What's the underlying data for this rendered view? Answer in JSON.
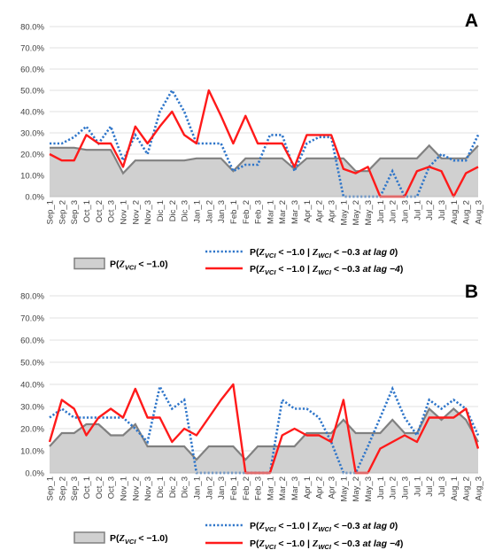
{
  "colors": {
    "area_fill": "#d0d0d0",
    "area_line": "#808080",
    "lag0": "#2e75c9",
    "lag4": "#ff1a1a"
  },
  "chart_data": [
    {
      "panel_label": "A",
      "type": "line",
      "x": [
        "Sep_1",
        "Sep_2",
        "Sep_3",
        "Oct_1",
        "Oct_2",
        "Oct_3",
        "Nov_1",
        "Nov_2",
        "Nov_3",
        "Dic_1",
        "Dic_2",
        "Dic_3",
        "Jan_1",
        "Jan_2",
        "Jan_3",
        "Feb_1",
        "Feb_2",
        "Feb_3",
        "Mar_1",
        "Mar_2",
        "Mar_3",
        "Apr_1",
        "Apr_2",
        "Apr_3",
        "May_1",
        "May_2",
        "May_3",
        "Jun_1",
        "Jun_2",
        "Jun_3",
        "Jul_1",
        "Jul_2",
        "Jul_3",
        "Aug_1",
        "Aug_2",
        "Aug_3"
      ],
      "yticks": [
        "0.0%",
        "10.0%",
        "20.0%",
        "30.0%",
        "40.0%",
        "50.0%",
        "60.0%",
        "70.0%",
        "80.0%"
      ],
      "ylim": [
        0,
        80
      ],
      "grid": true,
      "series": [
        {
          "name": "P(Z_VCI < −1.0)",
          "style": "area",
          "values": [
            23,
            23,
            23,
            22,
            22,
            22,
            11,
            17,
            17,
            17,
            17,
            17,
            18,
            18,
            18,
            12,
            18,
            18,
            18,
            18,
            13,
            18,
            18,
            18,
            18,
            12,
            12,
            18,
            18,
            18,
            18,
            24,
            18,
            18,
            18,
            24
          ]
        },
        {
          "name": "P(Z_VCI < −1.0 | Z_WCI < −0.3 at lag 0)",
          "style": "dotted",
          "values": [
            25,
            25,
            28,
            33,
            25,
            33,
            17,
            29,
            20,
            40,
            50,
            40,
            25,
            25,
            25,
            12,
            15,
            15,
            29,
            29,
            12,
            25,
            28,
            28,
            0,
            0,
            0,
            0,
            12,
            0,
            0,
            14,
            20,
            17,
            17,
            29
          ]
        },
        {
          "name": "P(Z_VCI < −1.0 | Z_WCI < −0.3 at lag −4)",
          "style": "solid",
          "values": [
            20,
            17,
            17,
            29,
            25,
            25,
            14,
            33,
            25,
            33,
            40,
            29,
            25,
            50,
            38,
            25,
            38,
            25,
            25,
            25,
            14,
            29,
            29,
            29,
            13,
            11,
            14,
            0,
            0,
            0,
            12,
            14,
            12,
            0,
            11,
            14
          ]
        }
      ]
    },
    {
      "panel_label": "B",
      "type": "line",
      "x": [
        "Sep_1",
        "Sep_2",
        "Sep_3",
        "Oct_1",
        "Oct_2",
        "Oct_3",
        "Nov_1",
        "Nov_2",
        "Nov_3",
        "Dic_1",
        "Dic_2",
        "Dic_3",
        "Jan_1",
        "Jan_2",
        "Jan_3",
        "Feb_1",
        "Feb_2",
        "Feb_3",
        "Mar_1",
        "Mar_2",
        "Mar_3",
        "Apr_1",
        "Apr_2",
        "Apr_3",
        "May_1",
        "May_2",
        "May_3",
        "Jun_1",
        "Jun_2",
        "Jun_3",
        "Jul_1",
        "Jul_2",
        "Jul_3",
        "Aug_1",
        "Aug_2",
        "Aug_3"
      ],
      "yticks": [
        "0.0%",
        "10.0%",
        "20.0%",
        "30.0%",
        "40.0%",
        "50.0%",
        "60.0%",
        "70.0%",
        "80.0%"
      ],
      "ylim": [
        0,
        80
      ],
      "grid": true,
      "series": [
        {
          "name": "P(Z_VCI < −1.0)",
          "style": "area",
          "values": [
            12,
            18,
            18,
            22,
            22,
            17,
            17,
            22,
            12,
            12,
            12,
            12,
            6,
            12,
            12,
            12,
            6,
            12,
            12,
            12,
            12,
            18,
            18,
            18,
            24,
            18,
            18,
            18,
            24,
            18,
            18,
            29,
            24,
            29,
            24,
            14
          ]
        },
        {
          "name": "P(Z_VCI < −1.0 | Z_WCI < −0.3 at lag 0)",
          "style": "dotted",
          "values": [
            25,
            29,
            25,
            25,
            25,
            25,
            25,
            20,
            14,
            39,
            29,
            33,
            0,
            0,
            0,
            0,
            0,
            0,
            0,
            33,
            29,
            29,
            25,
            14,
            0,
            0,
            12,
            25,
            38,
            25,
            17,
            33,
            29,
            33,
            29,
            17
          ]
        },
        {
          "name": "P(Z_VCI < −1.0 | Z_WCI < −0.3 at lag −4)",
          "style": "solid",
          "values": [
            14,
            33,
            29,
            17,
            25,
            29,
            25,
            38,
            25,
            25,
            14,
            20,
            17,
            25,
            33,
            40,
            0,
            0,
            0,
            17,
            20,
            17,
            17,
            14,
            33,
            0,
            0,
            11,
            14,
            17,
            14,
            25,
            25,
            25,
            29,
            11
          ]
        }
      ]
    }
  ]
}
